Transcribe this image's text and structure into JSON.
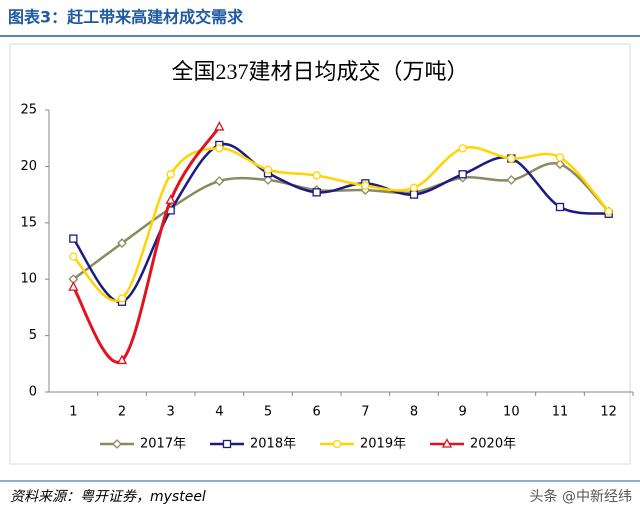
{
  "header": {
    "title": "图表3：赶工带来高建材成交需求"
  },
  "chart_data": {
    "type": "line",
    "title": "全国237建材日均成交（万吨）",
    "categories": [
      "1",
      "2",
      "3",
      "4",
      "5",
      "6",
      "7",
      "8",
      "9",
      "10",
      "11",
      "12"
    ],
    "series": [
      {
        "name": "2017年",
        "color": "#8c8a5c",
        "marker": "diamond",
        "values": [
          10,
          13.2,
          16.3,
          18.7,
          18.8,
          17.9,
          17.9,
          17.7,
          19,
          18.8,
          20.2,
          16
        ]
      },
      {
        "name": "2018年",
        "color": "#1c1c80",
        "marker": "square",
        "values": [
          13.6,
          8,
          16.1,
          21.9,
          19.4,
          17.7,
          18.5,
          17.5,
          19.3,
          20.7,
          16.4,
          15.8
        ]
      },
      {
        "name": "2019年",
        "color": "#ffd400",
        "marker": "circle",
        "values": [
          12,
          8.3,
          19.3,
          21.6,
          19.7,
          19.2,
          18.3,
          18.1,
          21.6,
          20.7,
          20.8,
          16
        ]
      },
      {
        "name": "2020年",
        "color": "#e0141e",
        "marker": "triangle",
        "values": [
          9.3,
          2.8,
          17,
          23.5,
          null,
          null,
          null,
          null,
          null,
          null,
          null,
          null
        ]
      }
    ],
    "ylim": [
      0,
      25
    ],
    "yticks": [
      0,
      5,
      10,
      15,
      20,
      25
    ],
    "grid": false,
    "legend": "bottom"
  },
  "footer": {
    "source": "资料来源：粤开证券，mysteel",
    "watermark": "头条 @中新经纬"
  }
}
